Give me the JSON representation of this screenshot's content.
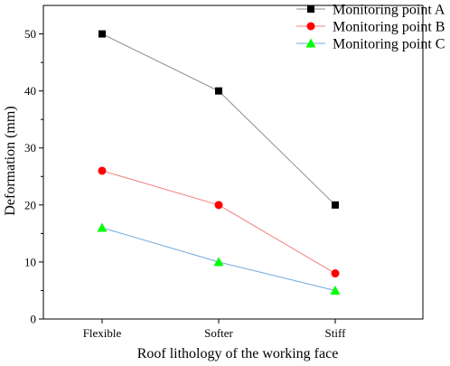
{
  "chart_data": {
    "type": "line",
    "categories": [
      "Flexible",
      "Softer",
      "Stiff"
    ],
    "series": [
      {
        "name": "Monitoring point A",
        "values": [
          50,
          40,
          20
        ],
        "marker": "square",
        "marker_color": "#000000",
        "line_color": "#8c8c8c"
      },
      {
        "name": "Monitoring point B",
        "values": [
          26,
          20,
          8
        ],
        "marker": "circle",
        "marker_color": "#ff0000",
        "line_color": "#f08080"
      },
      {
        "name": "Monitoring point C",
        "values": [
          16,
          10,
          5
        ],
        "marker": "triangle",
        "marker_color": "#00ff00",
        "line_color": "#6fa8dc"
      }
    ],
    "xlabel": "Roof lithology of the working face",
    "ylabel": "Deformation (mm)",
    "ylim": [
      0,
      55
    ],
    "yticks": [
      0,
      10,
      20,
      30,
      40,
      50
    ],
    "grid": false,
    "legend_position": "top-right"
  }
}
